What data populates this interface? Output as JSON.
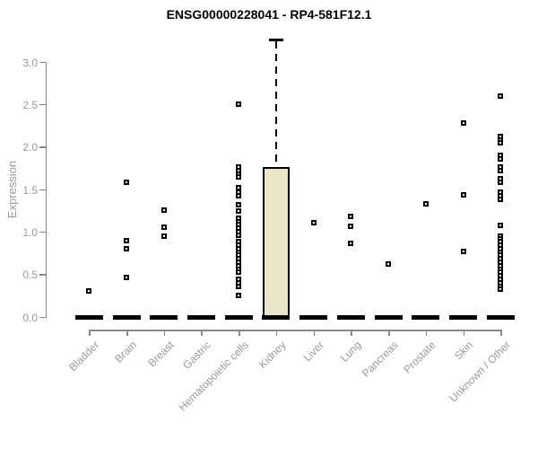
{
  "chart_data": {
    "type": "boxplot",
    "title": "ENSG00000228041 - RP4-581F12.1",
    "ylabel": "Expression",
    "xlabel": "",
    "yticks": [
      0.0,
      0.5,
      1.0,
      1.5,
      2.0,
      2.5,
      3.0
    ],
    "ylim": [
      0.0,
      3.3
    ],
    "grid": false,
    "legend": "none",
    "categories": [
      "Bladder",
      "Brain",
      "Breast",
      "Gastric",
      "Hematopoietic cells",
      "Kidney",
      "Liver",
      "Lung",
      "Pancreas",
      "Prostate",
      "Skin",
      "Unknown / Other"
    ],
    "series": [
      {
        "name": "Bladder",
        "values": [
          0.3
        ]
      },
      {
        "name": "Brain",
        "values": [
          1.58,
          0.89,
          0.8,
          0.46
        ]
      },
      {
        "name": "Breast",
        "values": [
          1.25,
          1.05,
          0.95
        ]
      },
      {
        "name": "Gastric",
        "values": []
      },
      {
        "name": "Hematopoietic cells",
        "values": [
          2.5,
          1.76,
          1.72,
          1.68,
          1.64,
          1.52,
          1.46,
          1.42,
          1.32,
          1.24,
          1.16,
          1.12,
          1.08,
          1.04,
          1.0,
          0.96,
          0.88,
          0.84,
          0.8,
          0.76,
          0.72,
          0.68,
          0.64,
          0.6,
          0.56,
          0.52,
          0.44,
          0.4,
          0.36,
          0.25
        ]
      },
      {
        "name": "Kidney",
        "values": []
      },
      {
        "name": "Liver",
        "values": [
          1.1
        ]
      },
      {
        "name": "Lung",
        "values": [
          1.18,
          1.06,
          0.86
        ]
      },
      {
        "name": "Pancreas",
        "values": [
          0.62
        ]
      },
      {
        "name": "Prostate",
        "values": [
          1.33
        ]
      },
      {
        "name": "Skin",
        "values": [
          2.28,
          1.43,
          0.77
        ]
      },
      {
        "name": "Unknown / Other",
        "values": [
          2.59,
          2.12,
          2.08,
          2.04,
          1.9,
          1.86,
          1.76,
          1.72,
          1.62,
          1.58,
          1.46,
          1.42,
          1.38,
          1.07,
          0.95,
          0.92,
          0.88,
          0.84,
          0.8,
          0.76,
          0.72,
          0.68,
          0.64,
          0.6,
          0.56,
          0.52,
          0.48,
          0.44,
          0.4,
          0.36,
          0.32
        ]
      }
    ],
    "median_bars": {
      "value": 0.0,
      "applies_to": "all categories"
    },
    "box": {
      "category": "Kidney",
      "q1": 0.0,
      "median": 0.0,
      "q3": 1.76,
      "whisker_low": 0.0,
      "whisker_high": 3.27
    },
    "colors": {
      "box_fill": "#EAE5C9",
      "box_border": "#000000",
      "point": "#000000",
      "median_bar": "#000000",
      "axis": "#888888",
      "tick_label": "#999999",
      "title": "#000000",
      "background": "#ffffff"
    }
  }
}
